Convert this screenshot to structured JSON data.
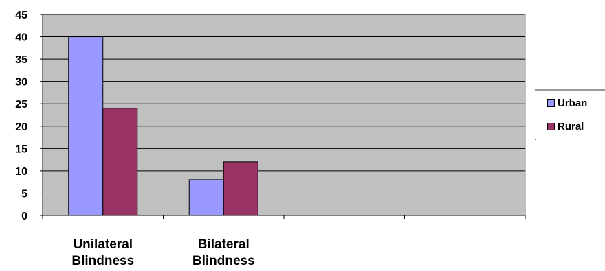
{
  "chart_data": {
    "type": "bar",
    "title": "",
    "xlabel": "",
    "ylabel": "",
    "categories": [
      [
        "Unilateral",
        "Blindness"
      ],
      [
        "Bilateral",
        "Blindness"
      ],
      [
        "",
        ""
      ],
      [
        "",
        ""
      ]
    ],
    "series": [
      {
        "name": "Urban",
        "color": "#9999ff",
        "values": [
          40,
          8,
          null,
          null
        ]
      },
      {
        "name": "Rural",
        "color": "#993366",
        "values": [
          24,
          12,
          null,
          null
        ]
      }
    ],
    "ylim": [
      0,
      45
    ],
    "yticks": [
      0,
      5,
      10,
      15,
      20,
      25,
      30,
      35,
      40,
      45
    ],
    "grid": true,
    "plot_background": "#c0c0c0",
    "legend_position": "right"
  }
}
